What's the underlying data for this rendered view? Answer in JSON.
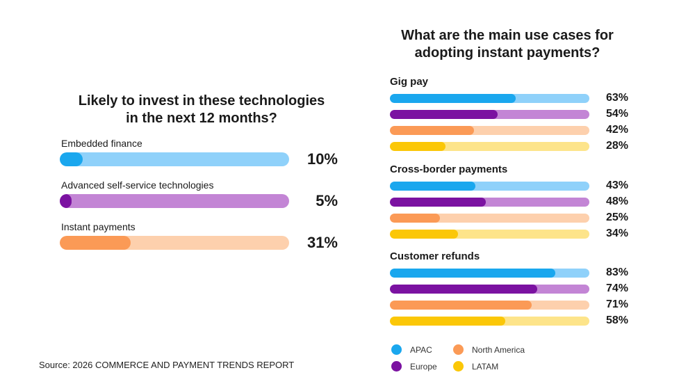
{
  "colors": {
    "apac": {
      "fill": "#1aa7ee",
      "track": "#8fd1fa"
    },
    "europe": {
      "fill": "#7b12a1",
      "track": "#c385d5"
    },
    "north_america": {
      "fill": "#fb9a56",
      "track": "#fdd0ad"
    },
    "latam": {
      "fill": "#fbc707",
      "track": "#fde48a"
    }
  },
  "source": "Source: 2026 COMMERCE AND PAYMENT TRENDS REPORT",
  "chart_data": [
    {
      "type": "bar",
      "orientation": "horizontal",
      "title_lines": [
        "Likely to invest in these technologies",
        "in the next 12 months?"
      ],
      "xlim": [
        0,
        100
      ],
      "items": [
        {
          "label": "Embedded finance",
          "value": 10,
          "display": "10%",
          "color": "apac"
        },
        {
          "label": "Advanced self-service technologies",
          "value": 5,
          "display": "5%",
          "color": "europe"
        },
        {
          "label": "Instant payments",
          "value": 31,
          "display": "31%",
          "color": "north_america"
        }
      ]
    },
    {
      "type": "bar",
      "orientation": "horizontal",
      "title_lines": [
        "What are the main use cases for",
        "adopting instant payments?"
      ],
      "xlim": [
        0,
        100
      ],
      "categories": [
        "Gig pay",
        "Cross-border payments",
        "Customer refunds"
      ],
      "series": [
        {
          "name": "APAC",
          "color": "apac",
          "values": [
            63,
            43,
            83
          ],
          "display": [
            "63%",
            "43%",
            "83%"
          ]
        },
        {
          "name": "Europe",
          "color": "europe",
          "values": [
            54,
            48,
            74
          ],
          "display": [
            "54%",
            "48%",
            "74%"
          ]
        },
        {
          "name": "North America",
          "color": "north_america",
          "values": [
            42,
            25,
            71
          ],
          "display": [
            "42%",
            "25%",
            "71%"
          ]
        },
        {
          "name": "LATAM",
          "color": "latam",
          "values": [
            28,
            34,
            58
          ],
          "display": [
            "28%",
            "34%",
            "58%"
          ]
        }
      ],
      "legend": {
        "placement": "bottom",
        "order": [
          "APAC",
          "North America",
          "Europe",
          "LATAM"
        ]
      }
    }
  ]
}
